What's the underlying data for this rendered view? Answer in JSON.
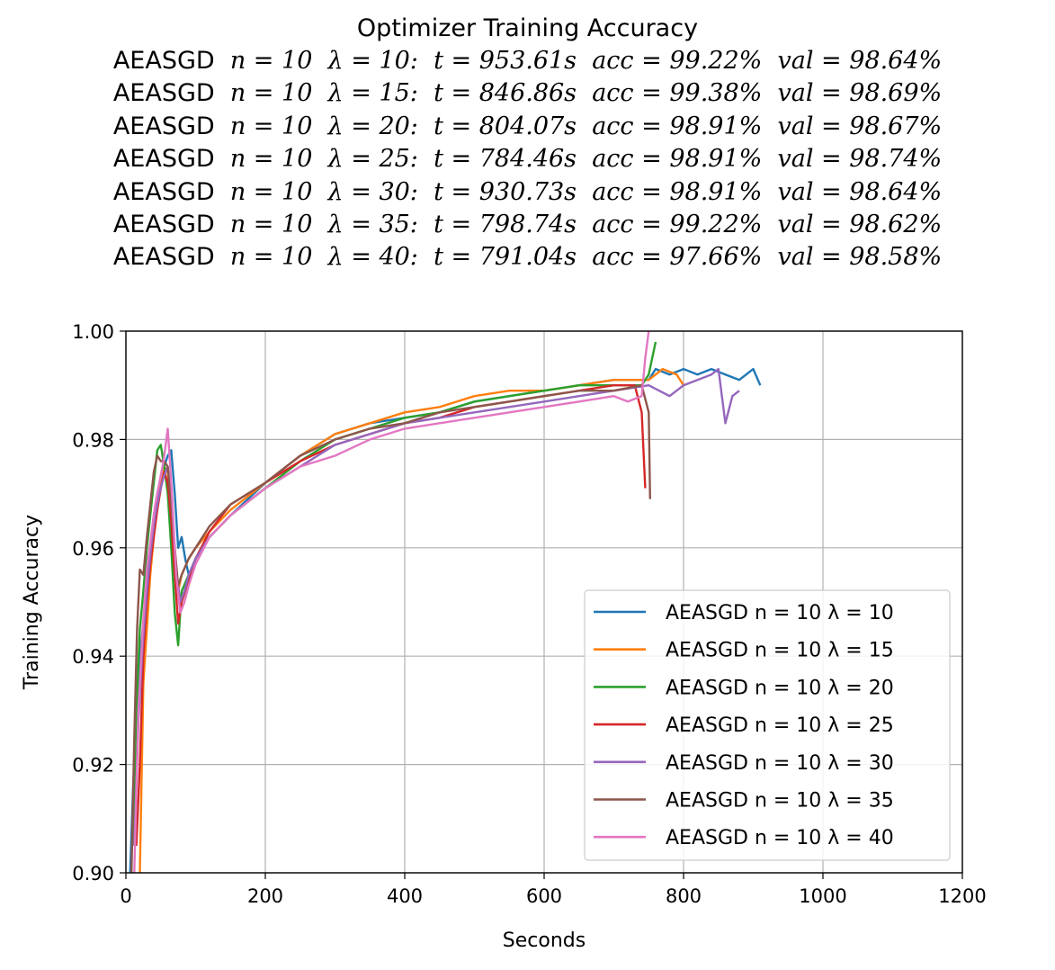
{
  "chart_data": {
    "type": "line",
    "title": "Optimizer Training Accuracy",
    "subtitle_lines": [
      [
        "AEASGD",
        "n = 10",
        "λ = 10:",
        "t = 953.61s",
        "acc = 99.22%",
        "val = 98.64%"
      ],
      [
        "AEASGD",
        "n = 10",
        "λ = 15:",
        "t = 846.86s",
        "acc = 99.38%",
        "val = 98.69%"
      ],
      [
        "AEASGD",
        "n = 10",
        "λ = 20:",
        "t = 804.07s",
        "acc = 98.91%",
        "val = 98.67%"
      ],
      [
        "AEASGD",
        "n = 10",
        "λ = 25:",
        "t = 784.46s",
        "acc = 98.91%",
        "val = 98.74%"
      ],
      [
        "AEASGD",
        "n = 10",
        "λ = 30:",
        "t = 930.73s",
        "acc = 98.91%",
        "val = 98.64%"
      ],
      [
        "AEASGD",
        "n = 10",
        "λ = 35:",
        "t = 798.74s",
        "acc = 99.22%",
        "val = 98.62%"
      ],
      [
        "AEASGD",
        "n = 10",
        "λ = 40:",
        "t = 791.04s",
        "acc = 97.66%",
        "val = 98.58%"
      ]
    ],
    "xlabel": "Seconds",
    "ylabel": "Training Accuracy",
    "xlim": [
      0,
      1200
    ],
    "ylim": [
      0.9,
      1.0
    ],
    "xticks": [
      "0",
      "200",
      "400",
      "600",
      "800",
      "1000",
      "1200"
    ],
    "yticks": [
      "0.90",
      "0.92",
      "0.94",
      "0.96",
      "0.98",
      "1.00"
    ],
    "grid": true,
    "legend_position": "lower-right",
    "series": [
      {
        "name": "AEASGD n = 10 λ = 10",
        "color": "#1f77b4",
        "x": [
          6,
          10,
          15,
          20,
          25,
          30,
          35,
          40,
          45,
          50,
          55,
          60,
          65,
          70,
          75,
          80,
          85,
          90,
          100,
          120,
          150,
          200,
          250,
          300,
          350,
          400,
          450,
          500,
          550,
          600,
          650,
          700,
          750,
          760,
          780,
          800,
          820,
          840,
          860,
          880,
          900,
          910
        ],
        "y": [
          0.9,
          0.915,
          0.93,
          0.94,
          0.946,
          0.955,
          0.96,
          0.966,
          0.97,
          0.973,
          0.975,
          0.977,
          0.978,
          0.97,
          0.96,
          0.962,
          0.958,
          0.955,
          0.958,
          0.962,
          0.966,
          0.972,
          0.977,
          0.981,
          0.983,
          0.984,
          0.985,
          0.987,
          0.988,
          0.989,
          0.99,
          0.991,
          0.991,
          0.993,
          0.992,
          0.993,
          0.992,
          0.993,
          0.992,
          0.991,
          0.993,
          0.99
        ]
      },
      {
        "name": "AEASGD n = 10 λ = 15",
        "color": "#ff7f0e",
        "x": [
          20,
          25,
          30,
          35,
          40,
          45,
          50,
          55,
          60,
          65,
          70,
          75,
          80,
          90,
          100,
          120,
          150,
          200,
          250,
          300,
          350,
          400,
          450,
          500,
          550,
          600,
          650,
          700,
          750,
          770,
          790,
          800
        ],
        "y": [
          0.9,
          0.935,
          0.945,
          0.955,
          0.962,
          0.968,
          0.972,
          0.975,
          0.974,
          0.966,
          0.958,
          0.952,
          0.955,
          0.958,
          0.96,
          0.963,
          0.967,
          0.972,
          0.977,
          0.981,
          0.983,
          0.985,
          0.986,
          0.988,
          0.989,
          0.989,
          0.99,
          0.991,
          0.991,
          0.993,
          0.992,
          0.99
        ]
      },
      {
        "name": "AEASGD n = 10 λ = 20",
        "color": "#2ca02c",
        "x": [
          10,
          15,
          20,
          25,
          30,
          35,
          40,
          45,
          50,
          55,
          60,
          65,
          70,
          75,
          80,
          90,
          100,
          120,
          150,
          200,
          250,
          300,
          350,
          400,
          450,
          500,
          550,
          600,
          650,
          700,
          740,
          750,
          755,
          760
        ],
        "y": [
          0.905,
          0.93,
          0.945,
          0.952,
          0.96,
          0.966,
          0.972,
          0.978,
          0.979,
          0.975,
          0.97,
          0.96,
          0.948,
          0.942,
          0.952,
          0.955,
          0.958,
          0.962,
          0.966,
          0.971,
          0.976,
          0.98,
          0.982,
          0.984,
          0.985,
          0.987,
          0.988,
          0.989,
          0.99,
          0.99,
          0.99,
          0.992,
          0.995,
          0.998
        ]
      },
      {
        "name": "AEASGD n = 10 λ = 25",
        "color": "#d62728",
        "x": [
          15,
          20,
          25,
          30,
          35,
          40,
          45,
          50,
          55,
          60,
          65,
          70,
          75,
          80,
          90,
          100,
          120,
          150,
          200,
          250,
          300,
          350,
          400,
          450,
          500,
          550,
          600,
          650,
          700,
          730,
          740,
          745
        ],
        "y": [
          0.905,
          0.92,
          0.94,
          0.95,
          0.957,
          0.962,
          0.967,
          0.971,
          0.974,
          0.972,
          0.965,
          0.955,
          0.946,
          0.95,
          0.954,
          0.958,
          0.963,
          0.968,
          0.972,
          0.976,
          0.979,
          0.981,
          0.983,
          0.984,
          0.986,
          0.987,
          0.988,
          0.989,
          0.99,
          0.99,
          0.985,
          0.971
        ]
      },
      {
        "name": "AEASGD n = 10 λ = 30",
        "color": "#9467bd",
        "x": [
          12,
          18,
          24,
          30,
          36,
          42,
          48,
          54,
          60,
          66,
          72,
          78,
          84,
          90,
          100,
          120,
          150,
          200,
          250,
          300,
          350,
          400,
          450,
          500,
          550,
          600,
          650,
          700,
          750,
          780,
          800,
          820,
          840,
          850,
          860,
          870,
          880
        ],
        "y": [
          0.905,
          0.928,
          0.942,
          0.952,
          0.96,
          0.966,
          0.97,
          0.973,
          0.975,
          0.967,
          0.956,
          0.95,
          0.952,
          0.955,
          0.958,
          0.962,
          0.966,
          0.971,
          0.975,
          0.979,
          0.981,
          0.983,
          0.984,
          0.985,
          0.986,
          0.987,
          0.988,
          0.989,
          0.99,
          0.988,
          0.99,
          0.991,
          0.992,
          0.993,
          0.983,
          0.988,
          0.989
        ]
      },
      {
        "name": "AEASGD n = 10 λ = 35",
        "color": "#8c564b",
        "x": [
          8,
          12,
          16,
          20,
          25,
          30,
          35,
          40,
          45,
          50,
          55,
          60,
          65,
          70,
          75,
          80,
          90,
          100,
          120,
          150,
          200,
          250,
          300,
          350,
          400,
          450,
          500,
          550,
          600,
          650,
          700,
          740,
          750,
          752
        ],
        "y": [
          0.9,
          0.925,
          0.945,
          0.956,
          0.955,
          0.962,
          0.968,
          0.974,
          0.977,
          0.976,
          0.976,
          0.975,
          0.968,
          0.96,
          0.953,
          0.955,
          0.958,
          0.96,
          0.964,
          0.968,
          0.972,
          0.977,
          0.98,
          0.982,
          0.983,
          0.985,
          0.986,
          0.987,
          0.988,
          0.989,
          0.989,
          0.99,
          0.985,
          0.969
        ]
      },
      {
        "name": "AEASGD n = 10 λ = 40",
        "color": "#e377c2",
        "x": [
          12,
          18,
          24,
          30,
          36,
          42,
          48,
          54,
          60,
          66,
          72,
          78,
          84,
          90,
          100,
          120,
          150,
          200,
          250,
          300,
          350,
          400,
          450,
          500,
          550,
          600,
          650,
          700,
          720,
          740,
          745,
          750
        ],
        "y": [
          0.9,
          0.93,
          0.945,
          0.956,
          0.962,
          0.968,
          0.972,
          0.976,
          0.982,
          0.97,
          0.955,
          0.948,
          0.95,
          0.953,
          0.957,
          0.962,
          0.966,
          0.971,
          0.975,
          0.977,
          0.98,
          0.982,
          0.983,
          0.984,
          0.985,
          0.986,
          0.987,
          0.988,
          0.987,
          0.988,
          0.995,
          1.0
        ]
      }
    ]
  }
}
